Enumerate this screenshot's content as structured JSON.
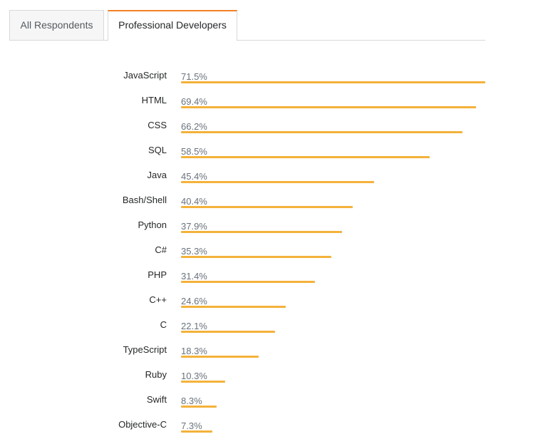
{
  "tabs": [
    {
      "label": "All Respondents",
      "active": false
    },
    {
      "label": "Professional Developers",
      "active": true
    }
  ],
  "colors": {
    "bar": "#f4b23a",
    "tab_accent": "#f48024"
  },
  "chart_data": {
    "type": "bar",
    "orientation": "horizontal",
    "categories": [
      "JavaScript",
      "HTML",
      "CSS",
      "SQL",
      "Java",
      "Bash/Shell",
      "Python",
      "C#",
      "PHP",
      "C++",
      "C",
      "TypeScript",
      "Ruby",
      "Swift",
      "Objective-C"
    ],
    "values": [
      71.5,
      69.4,
      66.2,
      58.5,
      45.4,
      40.4,
      37.9,
      35.3,
      31.4,
      24.6,
      22.1,
      18.3,
      10.3,
      8.3,
      7.3
    ],
    "value_labels": [
      "71.5%",
      "69.4%",
      "66.2%",
      "58.5%",
      "45.4%",
      "40.4%",
      "37.9%",
      "35.3%",
      "31.4%",
      "24.6%",
      "22.1%",
      "18.3%",
      "10.3%",
      "8.3%",
      "7.3%"
    ],
    "unit": "%",
    "title": "",
    "xlabel": "",
    "ylabel": "",
    "grid": false,
    "legend": "none"
  }
}
